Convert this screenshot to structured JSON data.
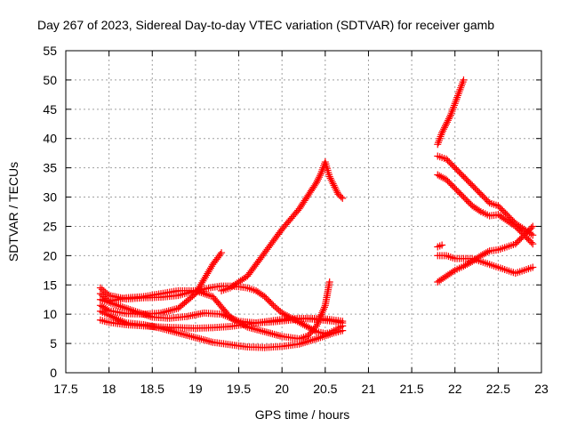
{
  "chart_data": {
    "type": "scatter",
    "title": "Day 267 of 2023, Sidereal Day-to-day VTEC variation (SDTVAR) for receiver gamb",
    "xlabel": "GPS time / hours",
    "ylabel": "SDTVAR / TECUs",
    "xlim": [
      17.5,
      23
    ],
    "ylim": [
      0,
      55
    ],
    "x_ticks": [
      "17.5",
      "18",
      "18.5",
      "19",
      "19.5",
      "20",
      "20.5",
      "21",
      "21.5",
      "22",
      "22.5",
      "23"
    ],
    "y_ticks": [
      "0",
      "5",
      "10",
      "15",
      "20",
      "25",
      "30",
      "35",
      "40",
      "45",
      "50",
      "55"
    ],
    "grid": true,
    "marker": "+",
    "color": "#ff0000",
    "series": [
      {
        "x": [
          17.9,
          18.0,
          18.2,
          18.4,
          18.6,
          18.8,
          19.0,
          19.2,
          19.4,
          19.6,
          19.8,
          20.0,
          20.2,
          20.4,
          20.6,
          20.7
        ],
        "y": [
          9.0,
          8.6,
          8.2,
          8.0,
          7.8,
          7.7,
          7.6,
          7.7,
          7.9,
          8.3,
          8.7,
          9.1,
          9.3,
          9.1,
          8.8,
          8.5
        ]
      },
      {
        "x": [
          17.9,
          18.0,
          18.2,
          18.4,
          18.6,
          18.8,
          19.0,
          19.1,
          19.2,
          19.3
        ],
        "y": [
          11.5,
          10.6,
          10.1,
          10.0,
          10.2,
          11.0,
          13.5,
          16.0,
          18.5,
          20.5
        ]
      },
      {
        "x": [
          17.9,
          18.0,
          18.2,
          18.5,
          18.7,
          18.9,
          19.1,
          19.3,
          19.5,
          19.7,
          19.9,
          20.1,
          20.3,
          20.5,
          20.6,
          20.7
        ],
        "y": [
          12.5,
          12.0,
          11.0,
          9.5,
          9.3,
          9.6,
          10.2,
          10.0,
          8.8,
          8.5,
          8.7,
          9.0,
          9.3,
          9.2,
          9.0,
          8.8
        ]
      },
      {
        "x": [
          17.9,
          18.0,
          18.2,
          18.4,
          18.6,
          18.8,
          19.0,
          19.2,
          19.4,
          19.6,
          19.8,
          20.0,
          20.2,
          20.4,
          20.6,
          20.7
        ],
        "y": [
          10.5,
          9.8,
          8.5,
          8.2,
          7.6,
          6.8,
          6.0,
          5.2,
          4.8,
          4.4,
          4.3,
          4.5,
          4.9,
          5.8,
          6.8,
          7.2
        ]
      },
      {
        "x": [
          17.9,
          18.0,
          18.2,
          18.4,
          18.6,
          18.8,
          18.9,
          19.0,
          19.1,
          19.2,
          19.3,
          19.4,
          19.5,
          19.6,
          19.7,
          19.8,
          19.9,
          20.0,
          20.1,
          20.2,
          20.3,
          20.4,
          20.5,
          20.55,
          20.6,
          20.65,
          20.7
        ],
        "y": [
          14.5,
          13.2,
          12.6,
          12.8,
          12.9,
          13.2,
          13.6,
          14.0,
          14.3,
          14.6,
          14.8,
          14.8,
          14.7,
          14.5,
          14.0,
          13.0,
          11.5,
          10.2,
          9.4,
          8.6,
          7.8,
          7.0,
          6.7,
          6.8,
          7.2,
          7.6,
          8.0
        ]
      },
      {
        "x": [
          17.9,
          18.0,
          18.2,
          18.4,
          18.6,
          18.8,
          19.0,
          19.2,
          19.4,
          19.6,
          19.8,
          20.0,
          20.2,
          20.3,
          20.4,
          20.5,
          20.55
        ],
        "y": [
          13.5,
          12.2,
          12.8,
          13.0,
          13.5,
          14.0,
          14.0,
          13.0,
          9.5,
          7.8,
          7.0,
          6.2,
          5.8,
          6.3,
          8.0,
          11.5,
          15.5
        ]
      },
      {
        "x": [
          19.3,
          19.4,
          19.6,
          19.8,
          20.0,
          20.2,
          20.4,
          20.45,
          20.5,
          20.55,
          20.6,
          20.65,
          20.7
        ],
        "y": [
          14.0,
          14.5,
          16.5,
          20.5,
          24.5,
          28.0,
          32.5,
          34.0,
          36.0,
          33.5,
          32.0,
          30.5,
          29.8
        ]
      },
      {
        "x": [
          21.8,
          21.85,
          21.9,
          21.95,
          22.0,
          22.05,
          22.1
        ],
        "y": [
          39.0,
          41.0,
          42.5,
          44.0,
          46.0,
          48.0,
          50.0
        ]
      },
      {
        "x": [
          21.8,
          21.9,
          22.0,
          22.1,
          22.2,
          22.3,
          22.4,
          22.5,
          22.6,
          22.7,
          22.8,
          22.9
        ],
        "y": [
          37.0,
          36.5,
          35.0,
          33.5,
          32.0,
          30.5,
          29.0,
          28.5,
          27.0,
          25.5,
          24.5,
          23.5
        ]
      },
      {
        "x": [
          21.8,
          21.9,
          22.0,
          22.1,
          22.2,
          22.3,
          22.4,
          22.5,
          22.6,
          22.7,
          22.8,
          22.9
        ],
        "y": [
          33.8,
          33.0,
          31.5,
          30.0,
          28.5,
          27.5,
          26.8,
          27.0,
          26.0,
          25.0,
          23.5,
          22.0
        ]
      },
      {
        "x": [
          21.8,
          21.9,
          22.0,
          22.1,
          22.2,
          22.3,
          22.4,
          22.5,
          22.6,
          22.7,
          22.8,
          22.9
        ],
        "y": [
          15.5,
          16.5,
          17.5,
          18.2,
          19.0,
          20.0,
          20.8,
          21.0,
          21.5,
          22.0,
          23.5,
          25.0
        ]
      },
      {
        "x": [
          21.8,
          21.9,
          22.0,
          22.1,
          22.2,
          22.3,
          22.4,
          22.5,
          22.6,
          22.7,
          22.8,
          22.9
        ],
        "y": [
          20.0,
          20.0,
          19.5,
          19.5,
          19.5,
          19.0,
          18.5,
          18.0,
          17.5,
          17.0,
          17.5,
          18.0
        ]
      },
      {
        "x": [
          21.8,
          21.85
        ],
        "y": [
          21.5,
          21.8
        ]
      }
    ]
  }
}
